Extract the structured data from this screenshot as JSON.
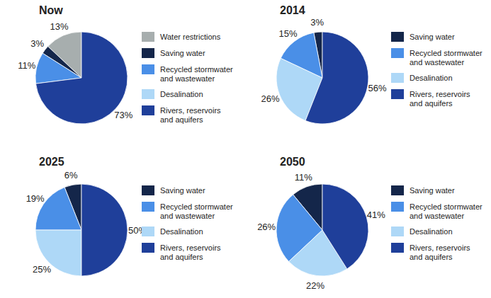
{
  "chart_data": [
    {
      "type": "pie",
      "title": "Now",
      "categories": [
        "Water restrictions",
        "Saving water",
        "Recycled stormwater and wastewater",
        "Desalination",
        "Rivers, reservoirs and aquifers"
      ],
      "values": [
        13,
        3,
        11,
        0,
        73
      ],
      "value_labels": [
        "13%",
        "3%",
        "11%",
        null,
        "73%"
      ],
      "colors": [
        "#a7aeae",
        "#14264a",
        "#4a8fe7",
        "#aed8f7",
        "#1f3f9a"
      ],
      "data_labels": true
    },
    {
      "type": "pie",
      "title": "2014",
      "categories": [
        "Saving water",
        "Recycled stormwater and wastewater",
        "Desalination",
        "Rivers, reservoirs and aquifers"
      ],
      "values": [
        3,
        15,
        26,
        56
      ],
      "value_labels": [
        "3%",
        "15%",
        "26%",
        "56%"
      ],
      "colors": [
        "#14264a",
        "#4a8fe7",
        "#aed8f7",
        "#1f3f9a"
      ],
      "data_labels": true
    },
    {
      "type": "pie",
      "title": "2025",
      "categories": [
        "Saving water",
        "Recycled stormwater and wastewater",
        "Desalination",
        "Rivers, reservoirs and aquifers"
      ],
      "values": [
        6,
        19,
        25,
        50
      ],
      "value_labels": [
        "6%",
        "19%",
        "25%",
        "50%"
      ],
      "colors": [
        "#14264a",
        "#4a8fe7",
        "#aed8f7",
        "#1f3f9a"
      ],
      "data_labels": true
    },
    {
      "type": "pie",
      "title": "2050",
      "categories": [
        "Saving water",
        "Recycled stormwater and wastewater",
        "Desalination",
        "Rivers, reservoirs and aquifers"
      ],
      "values": [
        11,
        26,
        22,
        41
      ],
      "value_labels": [
        "11%",
        "26%",
        "22%",
        "41%"
      ],
      "colors": [
        "#14264a",
        "#4a8fe7",
        "#aed8f7",
        "#1f3f9a"
      ],
      "data_labels": true
    }
  ]
}
